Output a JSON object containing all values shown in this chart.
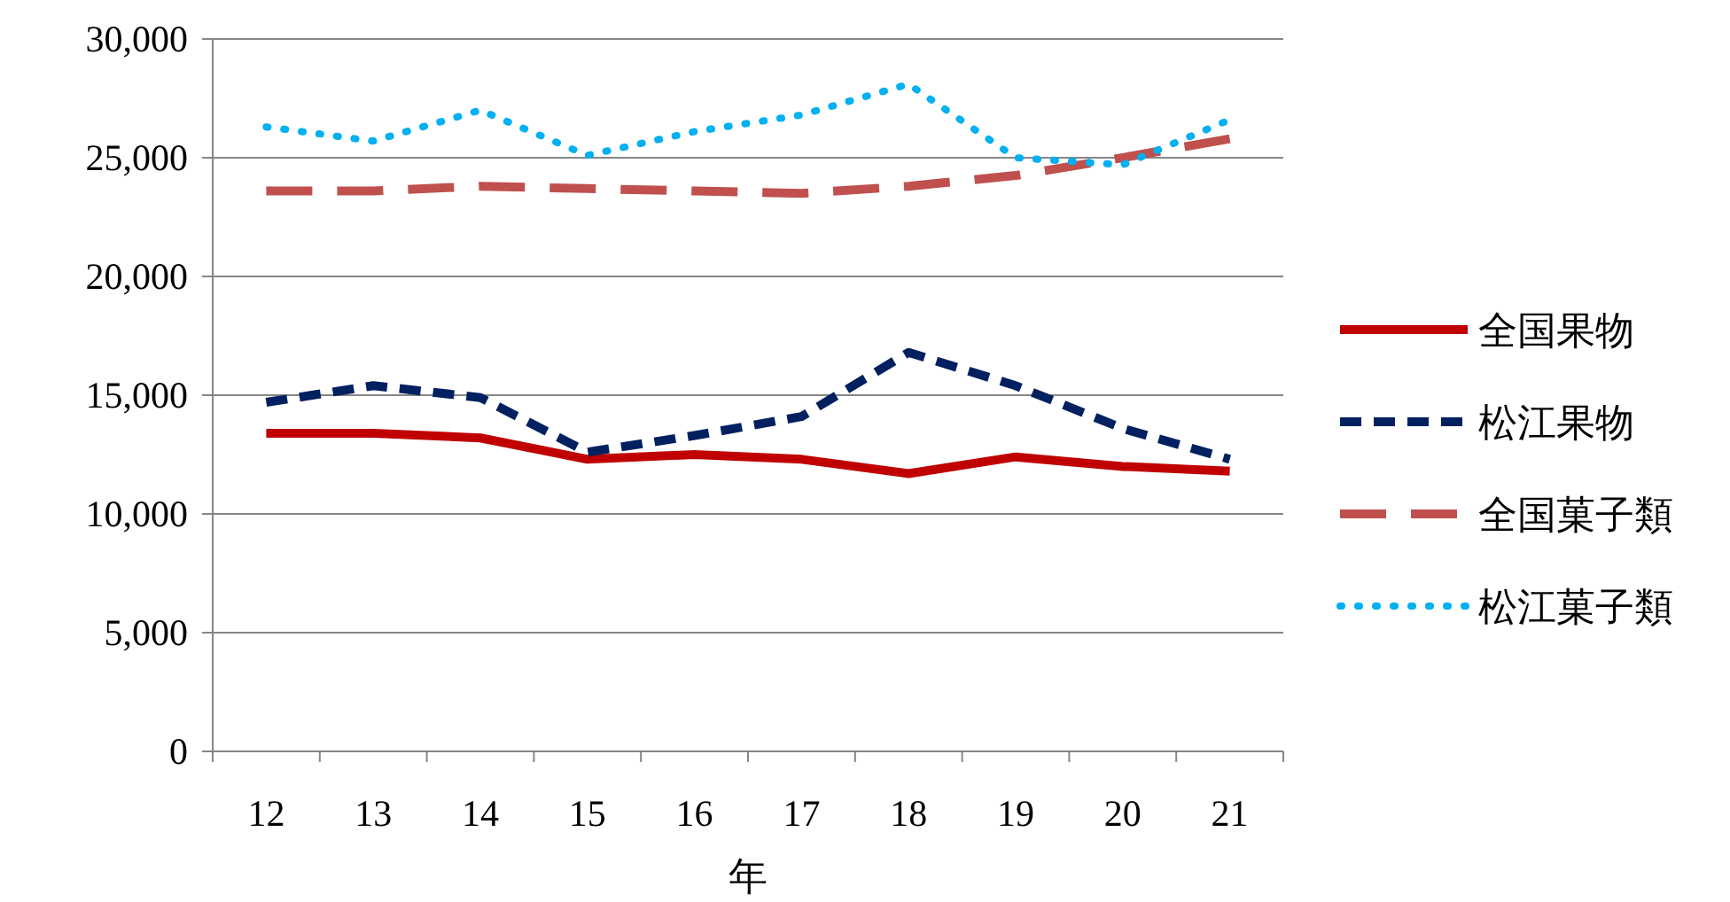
{
  "chart_data": {
    "type": "line",
    "xlabel": "年",
    "categories": [
      "12",
      "13",
      "14",
      "15",
      "16",
      "17",
      "18",
      "19",
      "20",
      "21"
    ],
    "ylim": [
      0,
      30000
    ],
    "yticks": [
      {
        "value": 0,
        "label": "0"
      },
      {
        "value": 5000,
        "label": "5,000"
      },
      {
        "value": 10000,
        "label": "10,000"
      },
      {
        "value": 15000,
        "label": "15,000"
      },
      {
        "value": 20000,
        "label": "20,000"
      },
      {
        "value": 25000,
        "label": "25,000"
      },
      {
        "value": 30000,
        "label": "30,000"
      }
    ],
    "grid": "y",
    "legend": "right",
    "marker": "none",
    "series": [
      {
        "name": "全国果物",
        "color": "#c00000",
        "line_style": "solid",
        "values": [
          13400,
          13400,
          13200,
          12300,
          12500,
          12300,
          11700,
          12400,
          12000,
          11800
        ]
      },
      {
        "name": "松江果物",
        "color": "#002060",
        "line_style": "dashed",
        "values": [
          14700,
          15400,
          14900,
          12600,
          13300,
          14100,
          16800,
          15400,
          13600,
          12300
        ]
      },
      {
        "name": "全国菓子類",
        "color": "#c0504d",
        "line_style": "dashed",
        "values": [
          23600,
          23600,
          23800,
          23700,
          23600,
          23500,
          23800,
          24250,
          25000,
          25800
        ]
      },
      {
        "name": "松江菓子類",
        "color": "#00b0f0",
        "line_style": "dotted",
        "values": [
          26300,
          25700,
          27000,
          25100,
          26100,
          26800,
          28100,
          25000,
          24700,
          26600
        ]
      }
    ]
  }
}
